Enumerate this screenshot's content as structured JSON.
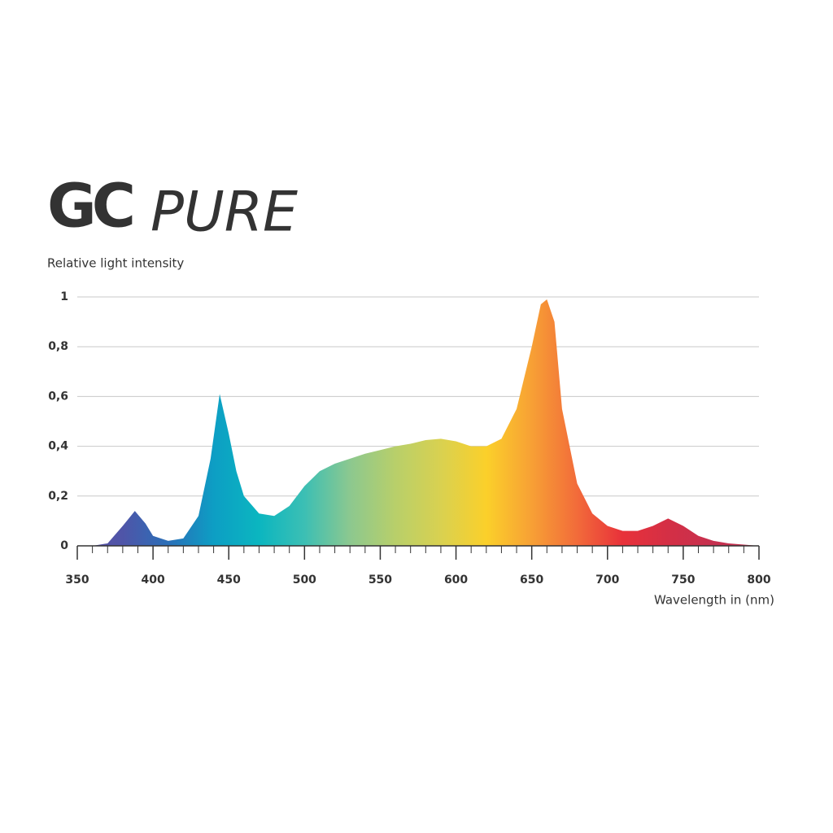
{
  "chart_data": {
    "type": "area",
    "brand": "GC",
    "title": "PURE",
    "ylabel": "Relative light intensity",
    "xlabel": "Wavelength in (nm)",
    "x": [
      360,
      370,
      380,
      388,
      395,
      400,
      410,
      420,
      430,
      438,
      444,
      450,
      455,
      460,
      470,
      480,
      490,
      500,
      510,
      520,
      530,
      540,
      550,
      560,
      570,
      580,
      590,
      600,
      610,
      620,
      630,
      640,
      650,
      656,
      660,
      665,
      670,
      680,
      690,
      700,
      710,
      720,
      730,
      740,
      750,
      760,
      770,
      780,
      800
    ],
    "values": [
      0,
      0.01,
      0.08,
      0.14,
      0.09,
      0.04,
      0.02,
      0.03,
      0.12,
      0.35,
      0.61,
      0.45,
      0.3,
      0.2,
      0.13,
      0.12,
      0.16,
      0.24,
      0.3,
      0.33,
      0.35,
      0.37,
      0.385,
      0.4,
      0.41,
      0.425,
      0.43,
      0.42,
      0.4,
      0.4,
      0.43,
      0.55,
      0.8,
      0.97,
      0.99,
      0.9,
      0.55,
      0.25,
      0.13,
      0.08,
      0.06,
      0.06,
      0.08,
      0.11,
      0.08,
      0.04,
      0.02,
      0.01,
      0
    ],
    "colors": [
      "#5b4fa3",
      "#4f55a8",
      "#2a6fb8",
      "#0d9ec4",
      "#0bb6c0",
      "#3cbfb4",
      "#8cc88f",
      "#b8cf6a",
      "#d9d150",
      "#fbd02a",
      "#f7a035",
      "#f26b3a",
      "#e8313a",
      "#d42f45",
      "#c6304f",
      "#c3314f"
    ],
    "xlim": [
      350,
      800
    ],
    "ylim": [
      0,
      1
    ],
    "xticks": [
      350,
      400,
      450,
      500,
      550,
      600,
      650,
      700,
      750,
      800
    ],
    "xticks_minor": [
      360,
      370,
      380,
      390,
      410,
      420,
      430,
      440,
      460,
      470,
      480,
      490,
      510,
      520,
      530,
      540,
      560,
      570,
      580,
      590,
      610,
      620,
      630,
      640,
      660,
      670,
      680,
      690,
      710,
      720,
      730,
      740,
      760,
      770,
      780,
      790
    ],
    "yticks": [
      0,
      {
        "value": 0.2,
        "label": "0,2"
      },
      {
        "value": 0.4,
        "label": "0,4"
      },
      {
        "value": 0.6,
        "label": "0,6"
      },
      {
        "value": 0.8,
        "label": "0,8"
      },
      1
    ],
    "grid": true
  }
}
